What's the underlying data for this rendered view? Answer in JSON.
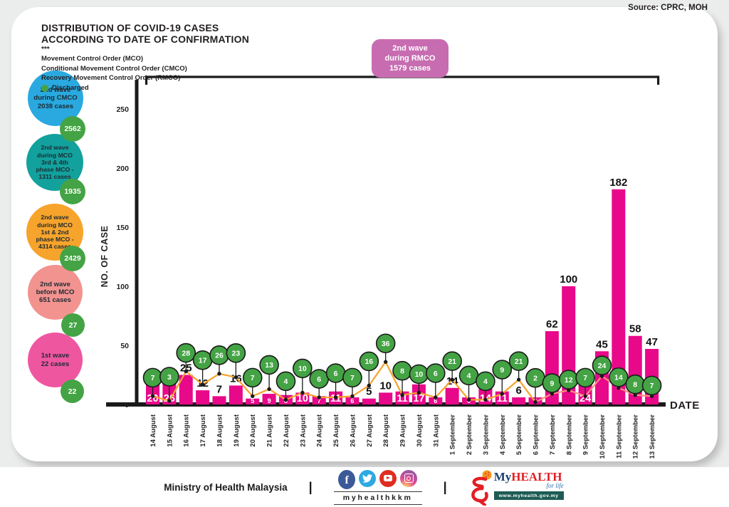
{
  "source": "Source: CPRC, MOH",
  "header": {
    "title_line1": "DISTRIBUTION OF COVID-19 CASES",
    "title_line2": "ACCORDING TO DATE OF CONFIRMATION",
    "stars": "***",
    "legend": [
      "Movement Control Order (MCO)",
      "Conditional Movement Control Order (CMCO)",
      "Recovery Movement Control Order (RMCO)"
    ],
    "discharged_label": "Discharged"
  },
  "wave_bubbles": [
    {
      "lines": [
        "2nd wave",
        "during CMCO",
        "2038 cases"
      ],
      "discharged": "2562",
      "color": "#29a9e0"
    },
    {
      "lines": [
        "2nd wave",
        "during MCO",
        "3rd & 4th",
        "phase MCO -",
        "1311 cases"
      ],
      "discharged": "1935",
      "color": "#12a19d"
    },
    {
      "lines": [
        "2nd wave",
        "during MCO",
        "1st & 2nd",
        "phase MCO -",
        "4314 cases"
      ],
      "discharged": "2429",
      "color": "#f6a42b"
    },
    {
      "lines": [
        "2nd wave",
        "before MCO",
        "651 cases"
      ],
      "discharged": "27",
      "color": "#f29390"
    },
    {
      "lines": [
        "1st wave",
        "22 cases"
      ],
      "discharged": "22",
      "color": "#ef56a0"
    }
  ],
  "rmco_badge": {
    "lines": [
      "2nd wave",
      "during RMCO",
      "1579 cases"
    ],
    "color": "#c76cb1"
  },
  "chart_data": {
    "type": "bar",
    "title": "DISTRIBUTION OF COVID-19 CASES ACCORDING TO DATE OF CONFIRMATION",
    "xlabel": "DATE",
    "ylabel": "NO. OF CASE",
    "ylim": [
      0,
      250
    ],
    "yticks": [
      0,
      50,
      100,
      150,
      200,
      250
    ],
    "grid": false,
    "legend_position": "none",
    "categories": [
      "14 August",
      "15 August",
      "16 August",
      "17 August",
      "18 August",
      "19 August",
      "20 August",
      "21 August",
      "22 August",
      "23 August",
      "24 August",
      "25 August",
      "26 August",
      "27 August",
      "28 August",
      "29 August",
      "30 August",
      "31 August",
      "1 September",
      "2 September",
      "3 September",
      "4 September",
      "5 September",
      "6 September",
      "7 September",
      "8 September",
      "9 September",
      "10 September",
      "11 September",
      "12 September",
      "13 September"
    ],
    "series": [
      {
        "name": "Confirmed cases",
        "type": "bar",
        "color": "#e8088a",
        "values": [
          20,
          26,
          25,
          12,
          7,
          16,
          5,
          9,
          8,
          10,
          7,
          11,
          6,
          5,
          10,
          11,
          17,
          6,
          14,
          6,
          14,
          11,
          6,
          6,
          62,
          100,
          24,
          45,
          182,
          58,
          47
        ]
      },
      {
        "name": "Discharged",
        "type": "line_with_circle_markers",
        "marker_color": "#44a344",
        "line_color_left": "#f6a22b",
        "line_color_right": "#ff8d80",
        "values": [
          7,
          3,
          28,
          17,
          26,
          23,
          7,
          13,
          4,
          10,
          6,
          6,
          7,
          16,
          36,
          8,
          10,
          6,
          21,
          4,
          4,
          9,
          21,
          2,
          9,
          12,
          7,
          24,
          14,
          8,
          7
        ]
      }
    ],
    "bar_label_positions": [
      "inside",
      "inside",
      "above",
      "above",
      "above",
      "above",
      "inside",
      "inside",
      "inside",
      "inside",
      "inside",
      "inside",
      "inside",
      "above",
      "above",
      "inside",
      "inside",
      "inside",
      "above",
      "inside",
      "inside",
      "inside",
      "above",
      "inside",
      "above",
      "above",
      "inside",
      "above",
      "above",
      "above",
      "above"
    ],
    "annotation_bracket": "RMCO period spanning all dates shown"
  },
  "footer": {
    "ministry": "Ministry of Health Malaysia",
    "separator": "|",
    "social_handle": "myhealthkkm",
    "social_icons": [
      "facebook-icon",
      "twitter-icon",
      "youtube-icon",
      "instagram-icon"
    ],
    "logo": {
      "my": "My",
      "health": "HEALTH",
      "tagline": "for life",
      "url": "www.myhealth.gov.my"
    }
  },
  "colors": {
    "bar": "#e8088a",
    "discharged_green": "#44a344",
    "line_orange": "#f6a22b",
    "line_salmon": "#ff8d80",
    "badge_mauve": "#c76cb1",
    "axis": "#1a1a1a",
    "text_dark": "#231f20",
    "page_bg": "#ebecec"
  }
}
